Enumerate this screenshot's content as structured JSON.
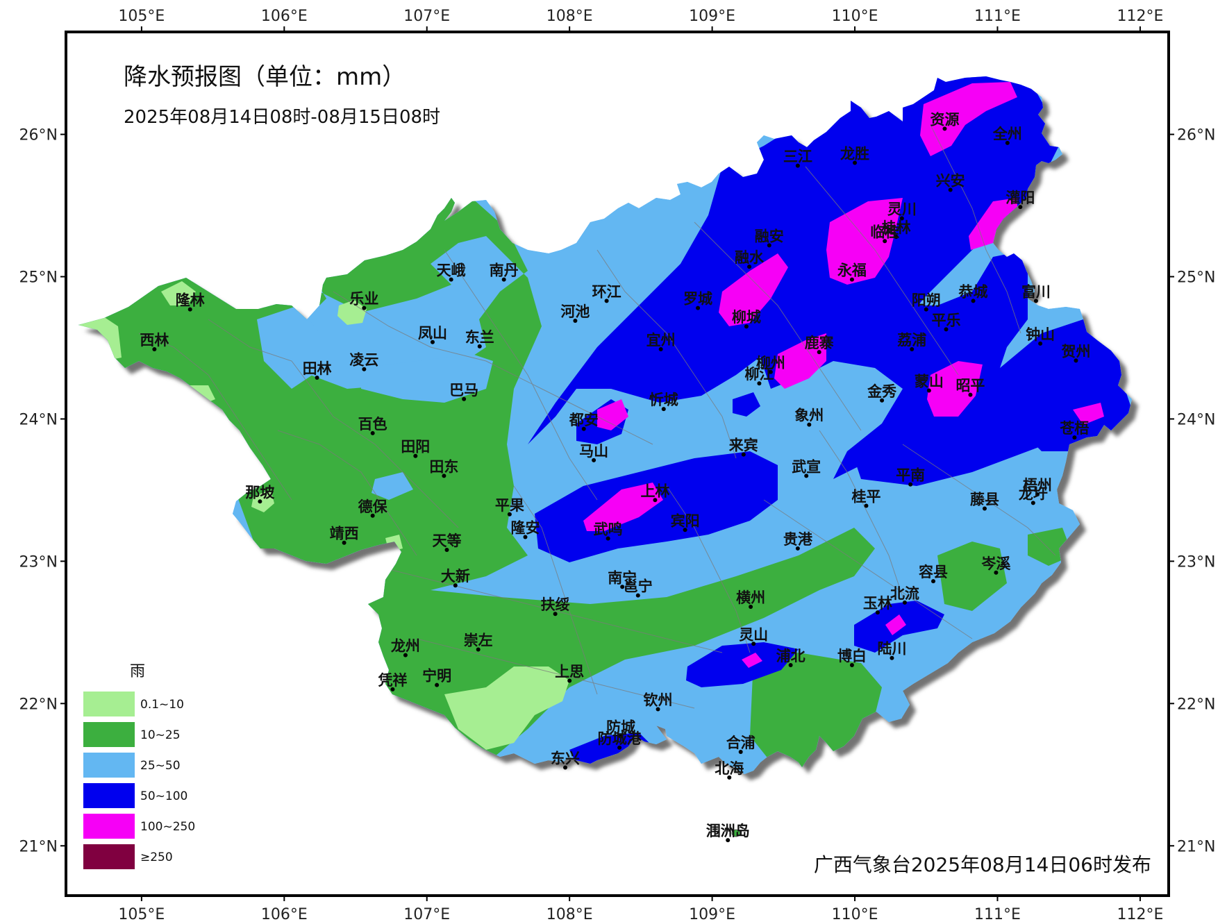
{
  "title": "降水预报图（单位：mm）",
  "period": "2025年08月14日08时-08月15日08时",
  "issuer": "广西气象台2025年08月14日06时发布",
  "axes": {
    "lon_ticks": [
      "105°E",
      "106°E",
      "107°E",
      "108°E",
      "109°E",
      "110°E",
      "111°E",
      "112°E"
    ],
    "lat_ticks": [
      "26°N",
      "25°N",
      "24°N",
      "23°N",
      "22°N",
      "21°N"
    ],
    "lon_values": [
      105,
      106,
      107,
      108,
      109,
      110,
      111,
      112
    ],
    "lat_values": [
      26,
      25,
      24,
      23,
      22,
      21
    ],
    "lon_range": [
      104.47,
      112.2
    ],
    "lat_range": [
      20.65,
      26.72
    ]
  },
  "legend": {
    "title": "雨",
    "items": [
      {
        "label": "0.1~10",
        "color": "#a6ee92"
      },
      {
        "label": "10~25",
        "color": "#3caf3f"
      },
      {
        "label": "25~50",
        "color": "#63b7f2"
      },
      {
        "label": "50~100",
        "color": "#0000ee"
      },
      {
        "label": "100~250",
        "color": "#f600f6"
      },
      {
        "label": "≥250",
        "color": "#800040"
      }
    ]
  },
  "cities": [
    {
      "name": "资源",
      "lon": 110.63,
      "lat": 26.04
    },
    {
      "name": "全州",
      "lon": 111.07,
      "lat": 25.94
    },
    {
      "name": "三江",
      "lon": 109.6,
      "lat": 25.78
    },
    {
      "name": "龙胜",
      "lon": 110.0,
      "lat": 25.8
    },
    {
      "name": "兴安",
      "lon": 110.67,
      "lat": 25.61
    },
    {
      "name": "灌阳",
      "lon": 111.16,
      "lat": 25.49
    },
    {
      "name": "灵川",
      "lon": 110.33,
      "lat": 25.41
    },
    {
      "name": "桂林",
      "lon": 110.29,
      "lat": 25.28
    },
    {
      "name": "临桂",
      "lon": 110.21,
      "lat": 25.25
    },
    {
      "name": "融安",
      "lon": 109.4,
      "lat": 25.22
    },
    {
      "name": "融水",
      "lon": 109.26,
      "lat": 25.07
    },
    {
      "name": "永福",
      "lon": 109.98,
      "lat": 24.98
    },
    {
      "name": "南丹",
      "lon": 107.54,
      "lat": 24.98
    },
    {
      "name": "天峨",
      "lon": 107.17,
      "lat": 24.98
    },
    {
      "name": "隆林",
      "lon": 105.34,
      "lat": 24.77
    },
    {
      "name": "乐业",
      "lon": 106.56,
      "lat": 24.78
    },
    {
      "name": "环江",
      "lon": 108.26,
      "lat": 24.83
    },
    {
      "name": "罗城",
      "lon": 108.9,
      "lat": 24.78
    },
    {
      "name": "阳朔",
      "lon": 110.5,
      "lat": 24.77
    },
    {
      "name": "恭城",
      "lon": 110.83,
      "lat": 24.83
    },
    {
      "name": "富川",
      "lon": 111.27,
      "lat": 24.83
    },
    {
      "name": "河池",
      "lon": 108.04,
      "lat": 24.69
    },
    {
      "name": "柳城",
      "lon": 109.24,
      "lat": 24.65
    },
    {
      "name": "平乐",
      "lon": 110.64,
      "lat": 24.63
    },
    {
      "name": "西林",
      "lon": 105.09,
      "lat": 24.49
    },
    {
      "name": "凤山",
      "lon": 107.04,
      "lat": 24.54
    },
    {
      "name": "东兰",
      "lon": 107.37,
      "lat": 24.51
    },
    {
      "name": "宜州",
      "lon": 108.64,
      "lat": 24.49
    },
    {
      "name": "钟山",
      "lon": 111.3,
      "lat": 24.53
    },
    {
      "name": "贺州",
      "lon": 111.55,
      "lat": 24.41
    },
    {
      "name": "荔浦",
      "lon": 110.4,
      "lat": 24.49
    },
    {
      "name": "鹿寨",
      "lon": 109.75,
      "lat": 24.47
    },
    {
      "name": "柳州",
      "lon": 109.41,
      "lat": 24.33
    },
    {
      "name": "柳江",
      "lon": 109.33,
      "lat": 24.25
    },
    {
      "name": "凌云",
      "lon": 106.56,
      "lat": 24.35
    },
    {
      "name": "田林",
      "lon": 106.23,
      "lat": 24.29
    },
    {
      "name": "蒙山",
      "lon": 110.52,
      "lat": 24.2
    },
    {
      "name": "昭平",
      "lon": 110.81,
      "lat": 24.17
    },
    {
      "name": "巴马",
      "lon": 107.26,
      "lat": 24.14
    },
    {
      "name": "金秀",
      "lon": 110.19,
      "lat": 24.13
    },
    {
      "name": "忻城",
      "lon": 108.66,
      "lat": 24.07
    },
    {
      "name": "都安",
      "lon": 108.1,
      "lat": 23.93
    },
    {
      "name": "象州",
      "lon": 109.68,
      "lat": 23.96
    },
    {
      "name": "苍梧",
      "lon": 111.54,
      "lat": 23.87
    },
    {
      "name": "百色",
      "lon": 106.62,
      "lat": 23.9
    },
    {
      "name": "来宾",
      "lon": 109.22,
      "lat": 23.75
    },
    {
      "name": "田阳",
      "lon": 106.92,
      "lat": 23.74
    },
    {
      "name": "马山",
      "lon": 108.17,
      "lat": 23.71
    },
    {
      "name": "武宣",
      "lon": 109.66,
      "lat": 23.6
    },
    {
      "name": "平南",
      "lon": 110.39,
      "lat": 23.54
    },
    {
      "name": "田东",
      "lon": 107.12,
      "lat": 23.6
    },
    {
      "name": "梧州",
      "lon": 111.28,
      "lat": 23.47
    },
    {
      "name": "龙圩",
      "lon": 111.25,
      "lat": 23.41
    },
    {
      "name": "上林",
      "lon": 108.6,
      "lat": 23.43
    },
    {
      "name": "桂平",
      "lon": 110.08,
      "lat": 23.39
    },
    {
      "name": "那坡",
      "lon": 105.83,
      "lat": 23.42
    },
    {
      "name": "藤县",
      "lon": 110.91,
      "lat": 23.37
    },
    {
      "name": "德保",
      "lon": 106.62,
      "lat": 23.32
    },
    {
      "name": "平果",
      "lon": 107.58,
      "lat": 23.33
    },
    {
      "name": "宾阳",
      "lon": 108.81,
      "lat": 23.22
    },
    {
      "name": "隆安",
      "lon": 107.69,
      "lat": 23.17
    },
    {
      "name": "武鸣",
      "lon": 108.27,
      "lat": 23.16
    },
    {
      "name": "靖西",
      "lon": 106.42,
      "lat": 23.13
    },
    {
      "name": "天等",
      "lon": 107.14,
      "lat": 23.08
    },
    {
      "name": "贵港",
      "lon": 109.6,
      "lat": 23.09
    },
    {
      "name": "岑溪",
      "lon": 110.99,
      "lat": 22.92
    },
    {
      "name": "大新",
      "lon": 107.2,
      "lat": 22.83
    },
    {
      "name": "容县",
      "lon": 110.55,
      "lat": 22.86
    },
    {
      "name": "南宁",
      "lon": 108.37,
      "lat": 22.82
    },
    {
      "name": "邕宁",
      "lon": 108.48,
      "lat": 22.76
    },
    {
      "name": "横州",
      "lon": 109.27,
      "lat": 22.68
    },
    {
      "name": "北流",
      "lon": 110.35,
      "lat": 22.71
    },
    {
      "name": "玉林",
      "lon": 110.16,
      "lat": 22.64
    },
    {
      "name": "扶绥",
      "lon": 107.9,
      "lat": 22.63
    },
    {
      "name": "崇左",
      "lon": 107.36,
      "lat": 22.38
    },
    {
      "name": "灵山",
      "lon": 109.29,
      "lat": 22.42
    },
    {
      "name": "龙州",
      "lon": 106.85,
      "lat": 22.34
    },
    {
      "name": "浦北",
      "lon": 109.55,
      "lat": 22.27
    },
    {
      "name": "博白",
      "lon": 109.98,
      "lat": 22.27
    },
    {
      "name": "陆川",
      "lon": 110.26,
      "lat": 22.32
    },
    {
      "name": "上思",
      "lon": 108.0,
      "lat": 22.16
    },
    {
      "name": "宁明",
      "lon": 107.07,
      "lat": 22.13
    },
    {
      "name": "凭祥",
      "lon": 106.76,
      "lat": 22.1
    },
    {
      "name": "钦州",
      "lon": 108.62,
      "lat": 21.96
    },
    {
      "name": "防城",
      "lon": 108.36,
      "lat": 21.77
    },
    {
      "name": "合浦",
      "lon": 109.2,
      "lat": 21.66
    },
    {
      "name": "防城港",
      "lon": 108.35,
      "lat": 21.69
    },
    {
      "name": "东兴",
      "lon": 107.97,
      "lat": 21.55
    },
    {
      "name": "北海",
      "lon": 109.12,
      "lat": 21.48
    },
    {
      "name": "涠洲岛",
      "lon": 109.11,
      "lat": 21.04
    }
  ]
}
